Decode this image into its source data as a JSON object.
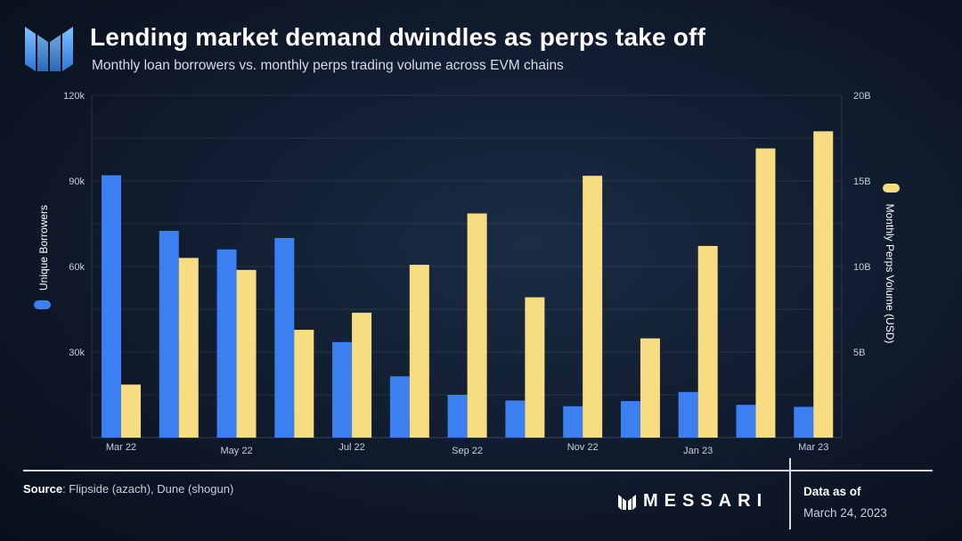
{
  "header": {
    "title": "Lending market demand dwindles as perps take off",
    "subtitle": "Monthly loan borrowers vs. monthly perps trading volume across EVM chains"
  },
  "chart_data": {
    "type": "bar",
    "categories": [
      "Mar 22",
      "Apr 22",
      "May 22",
      "Jun 22",
      "Jul 22",
      "Aug 22",
      "Sep 22",
      "Oct 22",
      "Nov 22",
      "Dec 22",
      "Jan 23",
      "Feb 23",
      "Mar 23"
    ],
    "x_tick_labels": [
      "Mar 22",
      "May 22",
      "Jul 22",
      "Sep 22",
      "Nov 22",
      "Jan 23",
      "Mar 23"
    ],
    "series": [
      {
        "name": "Unique  Borrowers",
        "axis": "left",
        "color": "#3b7ff0",
        "values": [
          92000,
          72500,
          66000,
          70000,
          33500,
          21500,
          15000,
          13000,
          11000,
          12800,
          16000,
          11500,
          10800
        ]
      },
      {
        "name": "Monthly Perps Volume (USD)",
        "axis": "right",
        "color": "#f8dc82",
        "values": [
          3.1,
          10.5,
          9.8,
          6.3,
          7.3,
          10.1,
          13.1,
          8.2,
          15.3,
          5.8,
          11.2,
          16.9,
          17.9
        ]
      }
    ],
    "y_left": {
      "label": "Unique  Borrowers",
      "lim": [
        0,
        120000
      ],
      "ticks": [
        30000,
        60000,
        90000,
        120000
      ],
      "tick_labels": [
        "30k",
        "60k",
        "90k",
        "120k"
      ]
    },
    "y_right": {
      "label": "Monthly Perps Volume (USD)",
      "lim": [
        0,
        20
      ],
      "unit": "B",
      "ticks": [
        5,
        10,
        15,
        20
      ],
      "tick_labels": [
        "5B",
        "10B",
        "15B",
        "20B"
      ]
    },
    "grid": true
  },
  "footer": {
    "source_label": "Source",
    "source_text": ": Flipside (azach), Dune (shogun)",
    "brand": "MESSARI",
    "as_of_label": "Data as of",
    "as_of_date": "March 24, 2023"
  },
  "colors": {
    "accent": "#3b7ff0",
    "highlight": "#f8dc82",
    "logo": "#4f9cf2"
  }
}
